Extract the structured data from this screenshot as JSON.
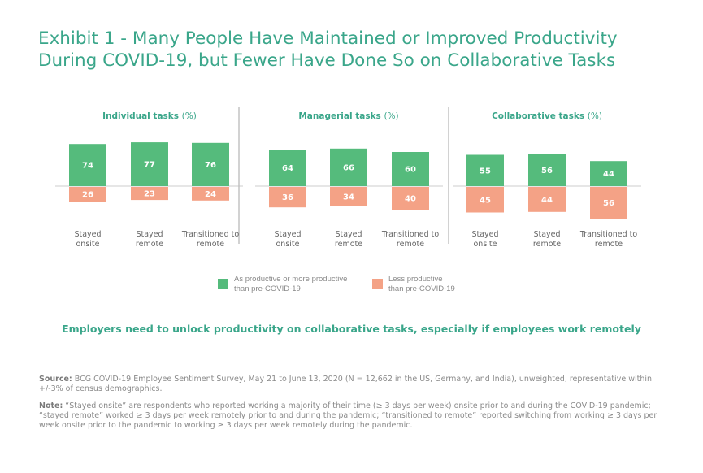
{
  "title": "Exhibit 1 - Many People Have Maintained or Improved Productivity During COVID-19, but Fewer Have Done So on Collaborative Tasks",
  "colors": {
    "accent": "#3aa68a",
    "productive": "#55bb7c",
    "less_productive": "#f4a286",
    "text_gray": "#8a8a8a"
  },
  "chart_data": [
    {
      "type": "bar",
      "title": "Individual tasks",
      "title_unit": "(%)",
      "categories": [
        "Stayed onsite",
        "Stayed remote",
        "Transitioned to remote"
      ],
      "series": [
        {
          "name": "As productive or more productive than pre-COVID-19",
          "values": [
            74,
            77,
            76
          ]
        },
        {
          "name": "Less productive than pre-COVID-19",
          "values": [
            26,
            23,
            24
          ]
        }
      ]
    },
    {
      "type": "bar",
      "title": "Managerial tasks",
      "title_unit": "(%)",
      "categories": [
        "Stayed onsite",
        "Stayed remote",
        "Transitioned to remote"
      ],
      "series": [
        {
          "name": "As productive or more productive than pre-COVID-19",
          "values": [
            64,
            66,
            60
          ]
        },
        {
          "name": "Less productive than pre-COVID-19",
          "values": [
            36,
            34,
            40
          ]
        }
      ]
    },
    {
      "type": "bar",
      "title": "Collaborative tasks",
      "title_unit": "(%)",
      "categories": [
        "Stayed onsite",
        "Stayed remote",
        "Transitioned to remote"
      ],
      "series": [
        {
          "name": "As productive or more productive than pre-COVID-19",
          "values": [
            55,
            56,
            44
          ]
        },
        {
          "name": "Less productive than pre-COVID-19",
          "values": [
            45,
            44,
            56
          ]
        }
      ]
    }
  ],
  "legend": {
    "productive_line1": "As productive or more productive",
    "productive_line2": "than pre-COVID-19",
    "less_line1": "Less productive",
    "less_line2": "than pre-COVID-19"
  },
  "takeaway": "Employers need to unlock productivity on collaborative tasks, especially if employees work remotely",
  "source": {
    "label": "Source:",
    "text": "BCG COVID-19 Employee Sentiment Survey, May 21 to June 13, 2020 (N = 12,662 in the US, Germany, and India), unweighted, representative within +/-3% of census demographics."
  },
  "note": {
    "label": "Note:",
    "text": "“Stayed onsite” are respondents who reported working a majority of their time (≥ 3 days per week) onsite prior to and during the COVID-19 pandemic; “stayed remote” worked ≥ 3 days per week remotely prior to and during the pandemic; “transitioned to remote” reported switching from working ≥ 3 days per week onsite prior to the pandemic to working ≥ 3 days per week remotely during the pandemic."
  }
}
